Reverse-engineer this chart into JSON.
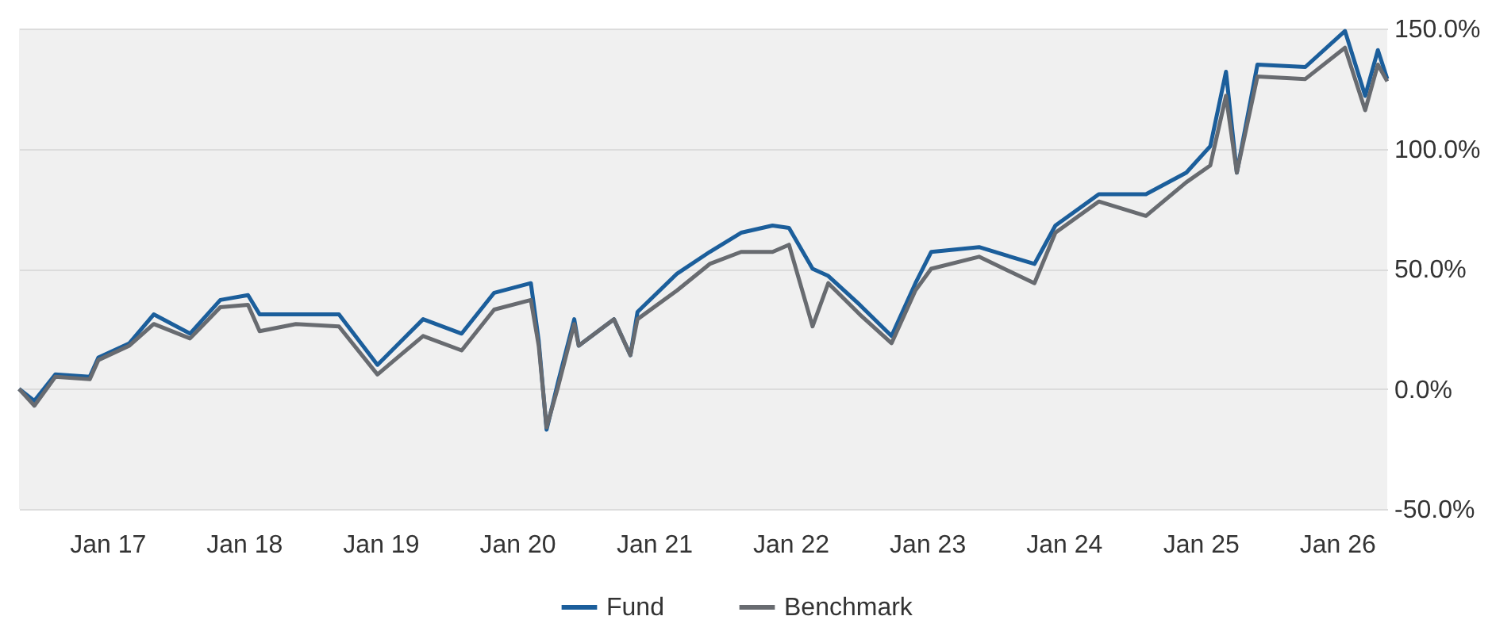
{
  "chart_data": {
    "type": "line",
    "x": [
      "2016-05-10",
      "2016-06-20",
      "2016-08-15",
      "2016-11-15",
      "2016-12-08",
      "2017-03-01",
      "2017-05-05",
      "2017-08-10",
      "2017-10-30",
      "2018-01-12",
      "2018-02-12",
      "2018-05-20",
      "2018-09-12",
      "2018-12-24",
      "2019-04-25",
      "2019-08-06",
      "2019-11-01",
      "2020-02-07",
      "2020-02-28",
      "2020-03-20",
      "2020-04-20",
      "2020-06-02",
      "2020-06-14",
      "2020-09-16",
      "2020-10-30",
      "2020-11-18",
      "2021-03-04",
      "2021-05-30",
      "2021-08-22",
      "2021-11-14",
      "2021-12-28",
      "2022-03-01",
      "2022-04-12",
      "2022-07-05",
      "2022-09-28",
      "2022-12-01",
      "2023-01-12",
      "2023-05-20",
      "2023-10-15",
      "2023-12-10",
      "2024-04-04",
      "2024-08-08",
      "2024-11-24",
      "2025-01-27",
      "2025-03-10",
      "2025-04-08",
      "2025-06-02",
      "2025-10-08",
      "2026-01-22",
      "2026-03-17",
      "2026-04-20",
      "2026-05-15"
    ],
    "series": [
      {
        "name": "Fund",
        "color": "#1b5e9b",
        "values": [
          0,
          -5,
          6,
          5,
          13,
          19,
          31,
          23,
          37,
          39,
          31,
          31,
          31,
          10,
          29,
          23,
          40,
          44,
          20,
          -17,
          3,
          29,
          18,
          29,
          14,
          32,
          48,
          57,
          65,
          68,
          67,
          50,
          47,
          35,
          22,
          44,
          57,
          59,
          52,
          68,
          81,
          81,
          90,
          101,
          132,
          90,
          135,
          134,
          149,
          122,
          141,
          129
        ]
      },
      {
        "name": "Benchmark",
        "color": "#686b70",
        "values": [
          0,
          -7,
          5,
          4,
          12,
          18,
          27,
          21,
          34,
          35,
          24,
          27,
          26,
          6,
          22,
          16,
          33,
          37,
          18,
          -16,
          1,
          27,
          18,
          29,
          14,
          29,
          41,
          52,
          57,
          57,
          60,
          26,
          44,
          31,
          19,
          41,
          50,
          55,
          44,
          65,
          78,
          72,
          86,
          93,
          122,
          90,
          130,
          129,
          142,
          116,
          135,
          128
        ]
      }
    ],
    "xlim": [
      "2016-05-10",
      "2026-05-15"
    ],
    "xticks": [
      {
        "value": "2017-01-01",
        "label": "Jan 17"
      },
      {
        "value": "2018-01-01",
        "label": "Jan 18"
      },
      {
        "value": "2019-01-01",
        "label": "Jan 19"
      },
      {
        "value": "2020-01-01",
        "label": "Jan 20"
      },
      {
        "value": "2021-01-01",
        "label": "Jan 21"
      },
      {
        "value": "2022-01-01",
        "label": "Jan 22"
      },
      {
        "value": "2023-01-01",
        "label": "Jan 23"
      },
      {
        "value": "2024-01-01",
        "label": "Jan 24"
      },
      {
        "value": "2025-01-01",
        "label": "Jan 25"
      },
      {
        "value": "2026-01-01",
        "label": "Jan 26"
      }
    ],
    "ylim": [
      -50,
      150
    ],
    "yticks": [
      {
        "value": -50,
        "label": "-50.0%"
      },
      {
        "value": 0,
        "label": "0.0%"
      },
      {
        "value": 50,
        "label": "50.0%"
      },
      {
        "value": 100,
        "label": "100.0%"
      },
      {
        "value": 150,
        "label": "150.0%"
      }
    ],
    "grid": "y",
    "legend": "bottom",
    "marker": "none",
    "line_style": "solid"
  }
}
